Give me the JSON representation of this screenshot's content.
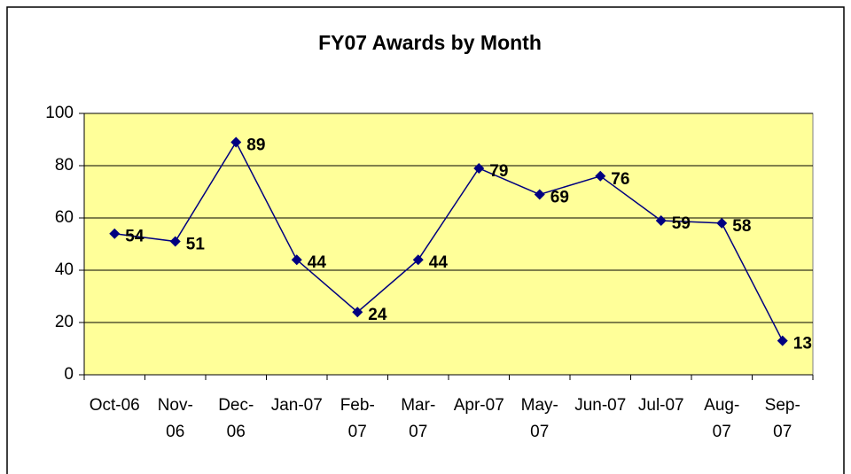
{
  "chart_data": {
    "type": "line",
    "title": "FY07 Awards by Month",
    "categories": [
      "Oct-06",
      "Nov-06",
      "Dec-06",
      "Jan-07",
      "Feb-07",
      "Mar-07",
      "Apr-07",
      "May-07",
      "Jun-07",
      "Jul-07",
      "Aug-07",
      "Sep-07"
    ],
    "series": [
      {
        "name": "Awards",
        "color": "#000080",
        "values": [
          54,
          51,
          89,
          44,
          24,
          44,
          79,
          69,
          76,
          59,
          58,
          13
        ]
      }
    ],
    "ylim": [
      0,
      100
    ],
    "yticks": [
      0,
      20,
      40,
      60,
      80,
      100
    ],
    "grid": true,
    "plot_background": "#ffff99"
  }
}
